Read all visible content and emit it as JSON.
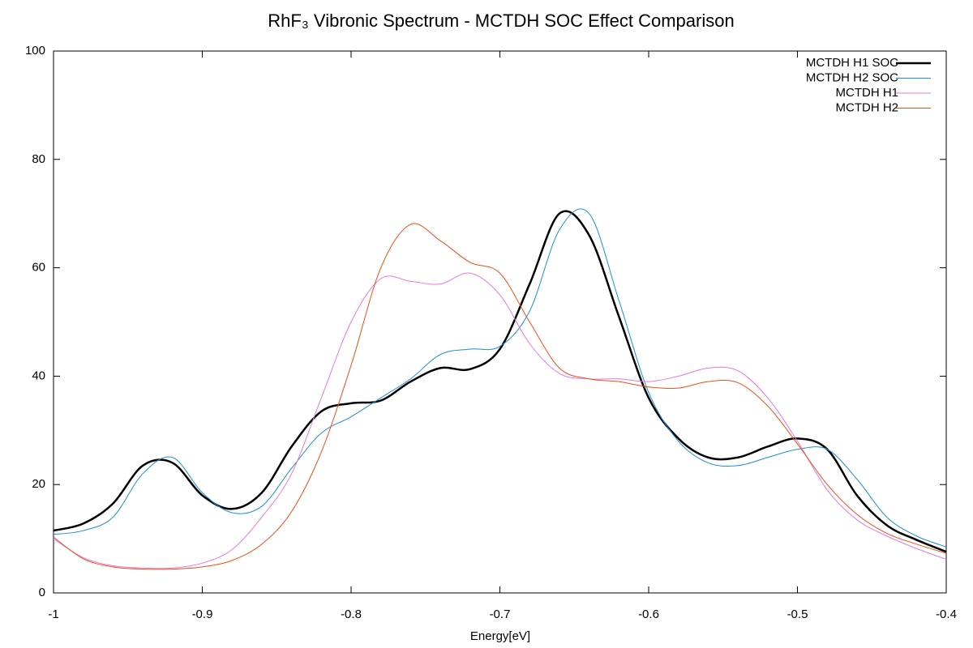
{
  "chart_data": {
    "type": "line",
    "title": "RhF₃ Vibronic Spectrum - MCTDH SOC Effect Comparison",
    "xlabel": "Energy[eV]",
    "x": [
      -1,
      -0.98,
      -0.96,
      -0.94,
      -0.92,
      -0.9,
      -0.88,
      -0.86,
      -0.84,
      -0.82,
      -0.8,
      -0.78,
      -0.76,
      -0.74,
      -0.72,
      -0.7,
      -0.68,
      -0.66,
      -0.64,
      -0.62,
      -0.6,
      -0.58,
      -0.56,
      -0.54,
      -0.52,
      -0.5,
      -0.48,
      -0.46,
      -0.44,
      -0.42,
      -0.4
    ],
    "series": [
      {
        "name": "MCTDH H1 SOC",
        "color": "#000000",
        "width": 2.5,
        "values": [
          11.5,
          12.8,
          16.5,
          23.5,
          24,
          18,
          15.5,
          18.5,
          27,
          33.5,
          35,
          35.5,
          39,
          41.5,
          41.3,
          45,
          57,
          70,
          66,
          51,
          36,
          28.5,
          25,
          25,
          27,
          28.5,
          26.5,
          18,
          12.5,
          9.8,
          7.6
        ]
      },
      {
        "name": "MCTDH H2 SOC",
        "color": "#1a8ed9",
        "width": 1,
        "values": [
          10.8,
          11.5,
          14,
          22,
          25,
          18.5,
          14.8,
          16,
          23,
          29.5,
          32.5,
          36,
          39.5,
          44,
          45,
          45.5,
          52,
          67,
          70,
          54,
          37,
          28,
          24,
          23.5,
          25,
          26.5,
          26.5,
          21,
          14,
          10.5,
          8.5
        ]
      },
      {
        "name": "MCTDH H1",
        "color": "#e27ae2",
        "width": 1,
        "values": [
          10,
          6.5,
          5,
          4.6,
          4.6,
          5.5,
          8,
          14,
          22,
          36,
          50,
          58,
          57.5,
          57,
          59,
          55,
          46,
          40.5,
          39.5,
          39.5,
          39,
          40,
          41.5,
          41,
          36,
          28,
          19,
          13.5,
          10.5,
          8.2,
          6.2
        ]
      },
      {
        "name": "MCTDH H2",
        "color": "#ee4d16",
        "width": 1,
        "values": [
          10.3,
          6.3,
          4.8,
          4.4,
          4.4,
          4.8,
          6,
          9,
          15,
          26,
          42,
          60,
          68,
          65,
          61,
          59,
          50,
          41.5,
          39.5,
          39,
          38,
          37.8,
          39,
          38.8,
          34.5,
          27.5,
          20,
          14.5,
          11,
          9,
          7.3
        ]
      }
    ],
    "xlim": [
      -1,
      -0.4
    ],
    "xticks": [
      -1,
      -0.9,
      -0.8,
      -0.7,
      -0.6,
      -0.5,
      -0.4
    ],
    "ylim": [
      0,
      100
    ],
    "yticks": [
      0,
      20,
      40,
      60,
      80,
      100
    ],
    "zero_line": true,
    "legend": "top-right"
  }
}
